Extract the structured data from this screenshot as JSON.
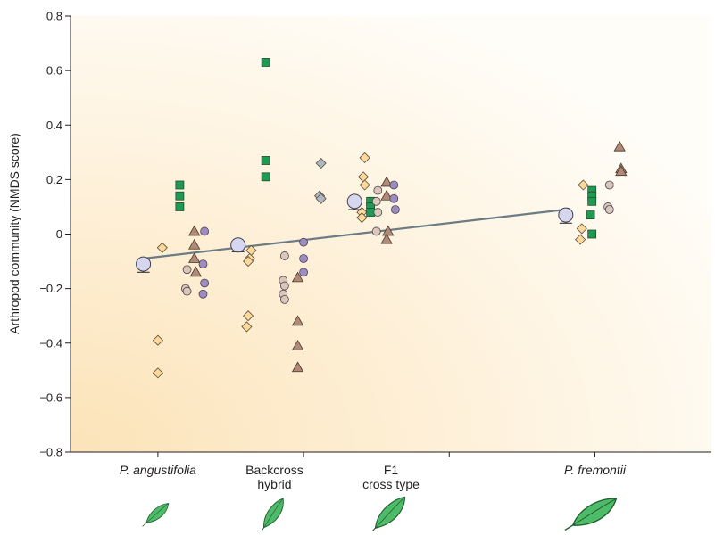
{
  "colors": {
    "diamond": "#fbd99a",
    "square": "#1e9a52",
    "triangle": "#b08a78",
    "circle_beige": "#d9c8ba",
    "circle_purple": "#9d8cc2",
    "diamond_gray": "#aeb8c4",
    "mean": "#d6d6ee",
    "trend": "#6c7c86",
    "leaf": "#4dbb68",
    "background_warm": "#fce3b8"
  },
  "chart_data": {
    "type": "scatter",
    "ylabel": "Arthropod community (NMDS score)",
    "ylim": [
      -0.8,
      0.8
    ],
    "yticks": [
      0.8,
      0.6,
      0.4,
      0.2,
      0,
      -0.2,
      -0.4,
      -0.6,
      -0.8
    ],
    "ytick_labels": [
      "0.8",
      "0.6",
      "0.4",
      "0.2",
      "0",
      "−0.2",
      "−0.4",
      "−0.6",
      "−0.8"
    ],
    "xlim": [
      0,
      4.4
    ],
    "xticks": [
      0.6,
      1.6,
      2.6,
      3.6
    ],
    "categories": [
      {
        "key": "pa",
        "lines": [
          "P. angustifolia"
        ],
        "italic": true,
        "x": 0.6
      },
      {
        "key": "bc",
        "lines": [
          "Backcross",
          "hybrid"
        ],
        "italic": false,
        "x": 1.4
      },
      {
        "key": "f1",
        "lines": [
          "F1",
          "cross type"
        ],
        "italic": false,
        "x": 2.2
      },
      {
        "key": "pf",
        "lines": [
          "P. fremontii"
        ],
        "italic": true,
        "x": 3.6
      }
    ],
    "trend_line": {
      "x": [
        0.5,
        3.4
      ],
      "y": [
        -0.09,
        0.09
      ]
    },
    "means": [
      {
        "x": 0.5,
        "y": -0.11,
        "err": 0.03
      },
      {
        "x": 1.15,
        "y": -0.04,
        "err": 0.025
      },
      {
        "x": 1.95,
        "y": 0.12,
        "err": 0.03
      },
      {
        "x": 3.4,
        "y": 0.07,
        "err": 0.03
      }
    ],
    "series": [
      {
        "shape": "diamond",
        "color": "diamond",
        "points": [
          [
            0.63,
            -0.05
          ],
          [
            0.6,
            -0.39
          ],
          [
            0.6,
            -0.51
          ],
          [
            1.24,
            -0.06
          ],
          [
            1.23,
            -0.09
          ],
          [
            1.22,
            -0.1
          ],
          [
            1.22,
            -0.3
          ],
          [
            1.21,
            -0.34
          ],
          [
            2.02,
            0.28
          ],
          [
            2.01,
            0.21
          ],
          [
            2.02,
            0.18
          ],
          [
            2.0,
            0.08
          ],
          [
            2.0,
            0.06
          ],
          [
            3.52,
            0.18
          ],
          [
            3.51,
            0.02
          ],
          [
            3.5,
            -0.02
          ]
        ]
      },
      {
        "shape": "square",
        "color": "square",
        "points": [
          [
            0.75,
            0.18
          ],
          [
            0.75,
            0.14
          ],
          [
            0.75,
            0.1
          ],
          [
            1.34,
            0.63
          ],
          [
            1.34,
            0.27
          ],
          [
            1.34,
            0.21
          ],
          [
            2.06,
            0.12
          ],
          [
            2.06,
            0.1
          ],
          [
            2.06,
            0.08
          ],
          [
            3.58,
            0.16
          ],
          [
            3.58,
            0.14
          ],
          [
            3.58,
            0.12
          ],
          [
            3.57,
            0.07
          ],
          [
            3.58,
            0.0
          ]
        ]
      },
      {
        "shape": "triangle",
        "color": "triangle",
        "points": [
          [
            0.85,
            0.01
          ],
          [
            0.85,
            -0.04
          ],
          [
            0.85,
            -0.09
          ],
          [
            0.86,
            -0.14
          ],
          [
            1.56,
            -0.16
          ],
          [
            1.56,
            -0.32
          ],
          [
            1.56,
            -0.41
          ],
          [
            1.56,
            -0.49
          ],
          [
            2.17,
            0.19
          ],
          [
            2.17,
            0.14
          ],
          [
            2.18,
            0.01
          ],
          [
            2.17,
            -0.02
          ],
          [
            3.77,
            0.32
          ],
          [
            3.78,
            0.24
          ],
          [
            3.78,
            0.23
          ]
        ]
      },
      {
        "shape": "circle",
        "color": "circle_beige",
        "points": [
          [
            0.8,
            -0.13
          ],
          [
            0.79,
            -0.2
          ],
          [
            0.8,
            -0.21
          ],
          [
            1.47,
            -0.08
          ],
          [
            1.46,
            -0.17
          ],
          [
            1.47,
            -0.19
          ],
          [
            1.46,
            -0.22
          ],
          [
            1.47,
            -0.24
          ],
          [
            2.11,
            0.16
          ],
          [
            2.1,
            0.12
          ],
          [
            2.11,
            0.08
          ],
          [
            2.1,
            0.01
          ],
          [
            3.7,
            0.18
          ],
          [
            3.69,
            0.1
          ],
          [
            3.7,
            0.09
          ]
        ]
      },
      {
        "shape": "circle",
        "color": "circle_purple",
        "points": [
          [
            0.92,
            0.01
          ],
          [
            0.91,
            -0.11
          ],
          [
            0.92,
            -0.18
          ],
          [
            0.91,
            -0.22
          ],
          [
            1.6,
            -0.03
          ],
          [
            1.6,
            -0.09
          ],
          [
            1.6,
            -0.14
          ],
          [
            2.22,
            0.18
          ],
          [
            2.22,
            0.13
          ],
          [
            2.23,
            0.09
          ]
        ]
      },
      {
        "shape": "diamond",
        "color": "diamond_gray",
        "points": [
          [
            1.72,
            0.26
          ],
          [
            1.71,
            0.14
          ],
          [
            1.72,
            0.13
          ]
        ]
      }
    ]
  }
}
